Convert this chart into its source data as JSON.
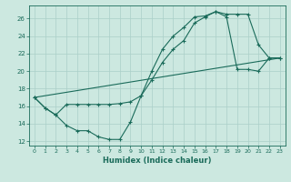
{
  "xlabel": "Humidex (Indice chaleur)",
  "bg_color": "#cce8e0",
  "grid_color": "#aacfc8",
  "line_color": "#1a6b5a",
  "xlim": [
    -0.5,
    23.5
  ],
  "ylim": [
    11.5,
    27.5
  ],
  "xticks": [
    0,
    1,
    2,
    3,
    4,
    5,
    6,
    7,
    8,
    9,
    10,
    11,
    12,
    13,
    14,
    15,
    16,
    17,
    18,
    19,
    20,
    21,
    22,
    23
  ],
  "yticks": [
    12,
    14,
    16,
    18,
    20,
    22,
    24,
    26
  ],
  "line1_x": [
    0,
    1,
    2,
    3,
    4,
    5,
    6,
    7,
    8,
    9,
    10,
    11,
    12,
    13,
    14,
    15,
    16,
    17,
    18,
    19,
    20,
    21,
    22,
    23
  ],
  "line1_y": [
    17.0,
    15.8,
    15.0,
    13.8,
    13.2,
    13.2,
    12.5,
    12.2,
    12.2,
    14.2,
    17.2,
    20.0,
    22.5,
    24.0,
    25.0,
    26.2,
    26.3,
    26.8,
    26.5,
    26.5,
    26.5,
    23.0,
    21.5,
    21.5
  ],
  "line2_x": [
    0,
    1,
    2,
    3,
    4,
    5,
    6,
    7,
    8,
    9,
    10,
    11,
    12,
    13,
    14,
    15,
    16,
    17,
    18,
    19,
    20,
    21,
    22,
    23
  ],
  "line2_y": [
    17.0,
    15.8,
    15.0,
    16.2,
    16.2,
    16.2,
    16.2,
    16.2,
    16.3,
    16.5,
    17.2,
    19.0,
    21.0,
    22.5,
    23.5,
    25.5,
    26.2,
    26.8,
    26.2,
    20.2,
    20.2,
    20.0,
    21.5,
    21.5
  ],
  "line3_x": [
    0,
    23
  ],
  "line3_y": [
    17.0,
    21.5
  ]
}
